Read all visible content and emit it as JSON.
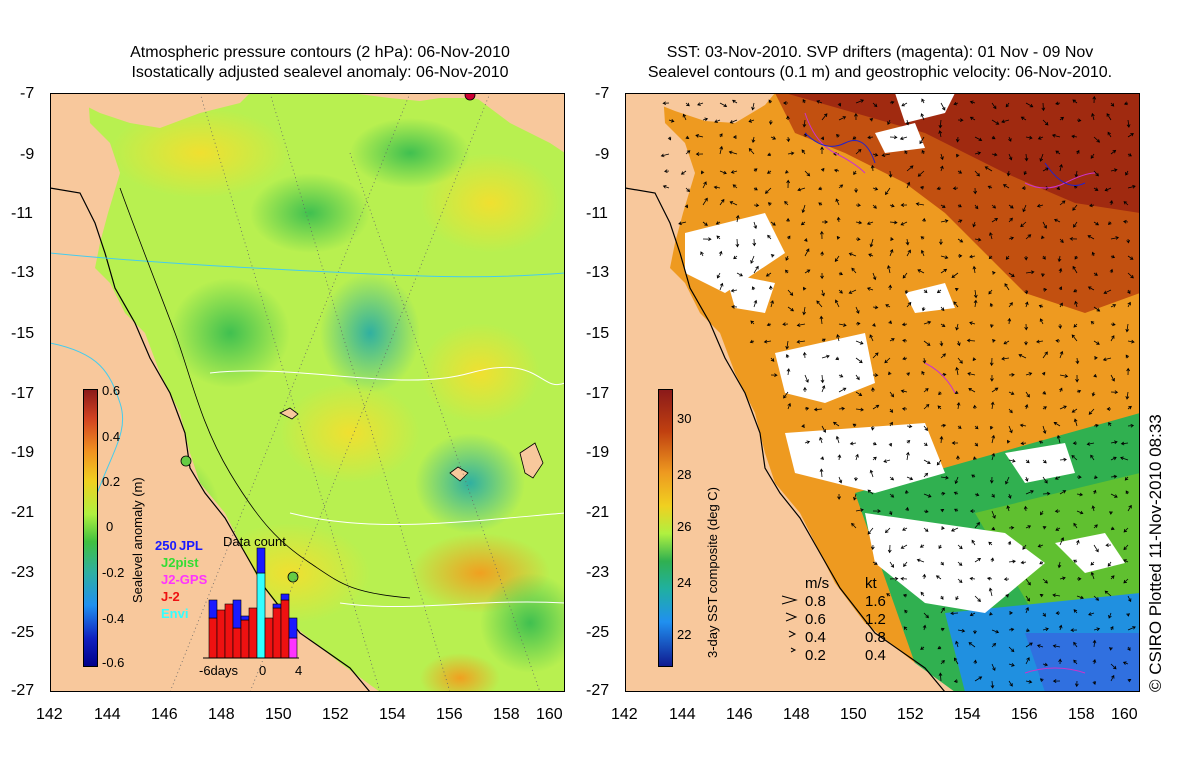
{
  "left_panel": {
    "title_line1": "Atmospheric pressure contours (2 hPa): 06-Nov-2010",
    "title_line2": "Isostatically adjusted sealevel anomaly: 06-Nov-2010",
    "colorbar": {
      "label": "Sealevel anomaly (m)",
      "ticks": [
        "0.6",
        "0.4",
        "0.2",
        "0",
        "-0.2",
        "-0.4",
        "-0.6"
      ]
    },
    "data_count_inset": {
      "title": "Data count",
      "max_label": "250",
      "legend": [
        "JPL",
        "J2pist",
        "J2-GPS",
        "J-2",
        "Envi"
      ],
      "legend_colors": [
        "#1a1aff",
        "#33dd33",
        "#ff33ff",
        "#ee1111",
        "#33ffff"
      ],
      "axis_labels": [
        "-6days",
        "0",
        "4"
      ]
    }
  },
  "right_panel": {
    "title_line1": "SST: 03-Nov-2010. SVP drifters (magenta): 01 Nov - 09 Nov",
    "title_line2": "Sealevel contours (0.1 m) and geostrophic velocity: 06-Nov-2010.",
    "colorbar": {
      "label": "3-day SST composite (deg C)",
      "ticks": [
        "30",
        "28",
        "26",
        "24",
        "22"
      ]
    },
    "velocity_legend": {
      "header_ms": "m/s",
      "header_kt": "kt",
      "rows": [
        {
          "ms": "0.8",
          "kt": "1.6"
        },
        {
          "ms": "0.6",
          "kt": "1.2"
        },
        {
          "ms": "0.4",
          "kt": "0.8"
        },
        {
          "ms": "0.2",
          "kt": "0.4"
        }
      ]
    }
  },
  "axes": {
    "lat_ticks": [
      "-7",
      "-9",
      "-11",
      "-13",
      "-15",
      "-17",
      "-19",
      "-21",
      "-23",
      "-25",
      "-27"
    ],
    "lon_ticks": [
      "142",
      "144",
      "146",
      "148",
      "150",
      "152",
      "154",
      "156",
      "158",
      "160"
    ]
  },
  "copyright": "© CSIRO Plotted 11-Nov-2010 08:33",
  "colors": {
    "land": "#f8c89c",
    "sla_base": "#b8f050",
    "sst_base": "#ee9a20"
  }
}
